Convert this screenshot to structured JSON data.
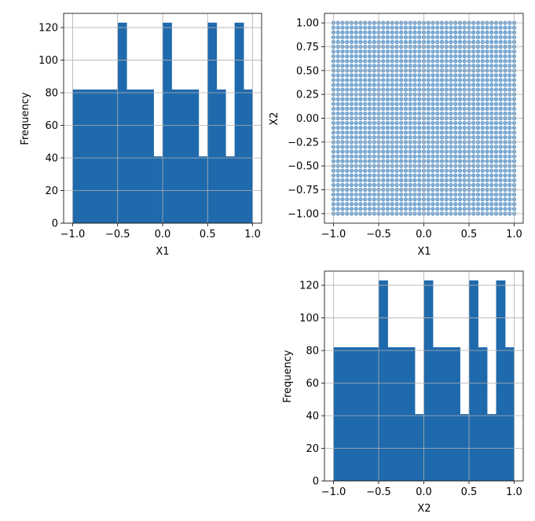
{
  "colors": {
    "bar": "#1f6aad",
    "point": "#6aa0d0",
    "point_edge": "#4f8cc4",
    "grid": "#b0b0b0",
    "axis": "#000000"
  },
  "chart_data": [
    {
      "id": "hist_x1",
      "type": "bar",
      "title": "",
      "xlabel": "X1",
      "ylabel": "Frequency",
      "xlim": [
        -1.1,
        1.1
      ],
      "ylim": [
        0,
        128.7
      ],
      "xticks": [
        -1.0,
        -0.5,
        0.0,
        0.5,
        1.0
      ],
      "xtick_labels": [
        "−1.0",
        "−0.5",
        "0.0",
        "0.5",
        "1.0"
      ],
      "yticks": [
        0,
        20,
        40,
        60,
        80,
        100,
        120
      ],
      "ytick_labels": [
        "0",
        "20",
        "40",
        "60",
        "80",
        "100",
        "120"
      ],
      "grid": true,
      "bin_edges": [
        -1.0,
        -0.9,
        -0.8,
        -0.7,
        -0.6,
        -0.5,
        -0.4,
        -0.3,
        -0.2,
        -0.1,
        0.0,
        0.1,
        0.2,
        0.3,
        0.4,
        0.5,
        0.6,
        0.7,
        0.8,
        0.9,
        1.0
      ],
      "values": [
        82,
        82,
        82,
        82,
        82,
        123,
        82,
        82,
        82,
        41,
        123,
        82,
        82,
        82,
        41,
        123,
        82,
        41,
        123,
        82
      ]
    },
    {
      "id": "scatter_x1_x2",
      "type": "scatter",
      "title": "",
      "xlabel": "X1",
      "ylabel": "X2",
      "xlim": [
        -1.1,
        1.1
      ],
      "ylim": [
        -1.1,
        1.1
      ],
      "xticks": [
        -1.0,
        -0.5,
        0.0,
        0.5,
        1.0
      ],
      "xtick_labels": [
        "−1.0",
        "−0.5",
        "0.0",
        "0.5",
        "1.0"
      ],
      "yticks": [
        -1.0,
        -0.75,
        -0.5,
        -0.25,
        0.0,
        0.25,
        0.5,
        0.75,
        1.0
      ],
      "ytick_labels": [
        "−1.00",
        "−0.75",
        "−0.50",
        "−0.25",
        "0.00",
        "0.25",
        "0.50",
        "0.75",
        "1.00"
      ],
      "grid": true,
      "points_grid": {
        "x_start": -1.0,
        "x_end": 1.0,
        "y_start": -1.0,
        "y_end": 1.0,
        "n_per_axis": 41
      }
    },
    {
      "id": "hist_x2",
      "type": "bar",
      "title": "",
      "xlabel": "X2",
      "ylabel": "Frequency",
      "xlim": [
        -1.1,
        1.1
      ],
      "ylim": [
        0,
        128.7
      ],
      "xticks": [
        -1.0,
        -0.5,
        0.0,
        0.5,
        1.0
      ],
      "xtick_labels": [
        "−1.0",
        "−0.5",
        "0.0",
        "0.5",
        "1.0"
      ],
      "yticks": [
        0,
        20,
        40,
        60,
        80,
        100,
        120
      ],
      "ytick_labels": [
        "0",
        "20",
        "40",
        "60",
        "80",
        "100",
        "120"
      ],
      "grid": true,
      "bin_edges": [
        -1.0,
        -0.9,
        -0.8,
        -0.7,
        -0.6,
        -0.5,
        -0.4,
        -0.3,
        -0.2,
        -0.1,
        0.0,
        0.1,
        0.2,
        0.3,
        0.4,
        0.5,
        0.6,
        0.7,
        0.8,
        0.9,
        1.0
      ],
      "values": [
        82,
        82,
        82,
        82,
        82,
        123,
        82,
        82,
        82,
        41,
        123,
        82,
        82,
        82,
        41,
        123,
        82,
        41,
        123,
        82
      ]
    }
  ]
}
